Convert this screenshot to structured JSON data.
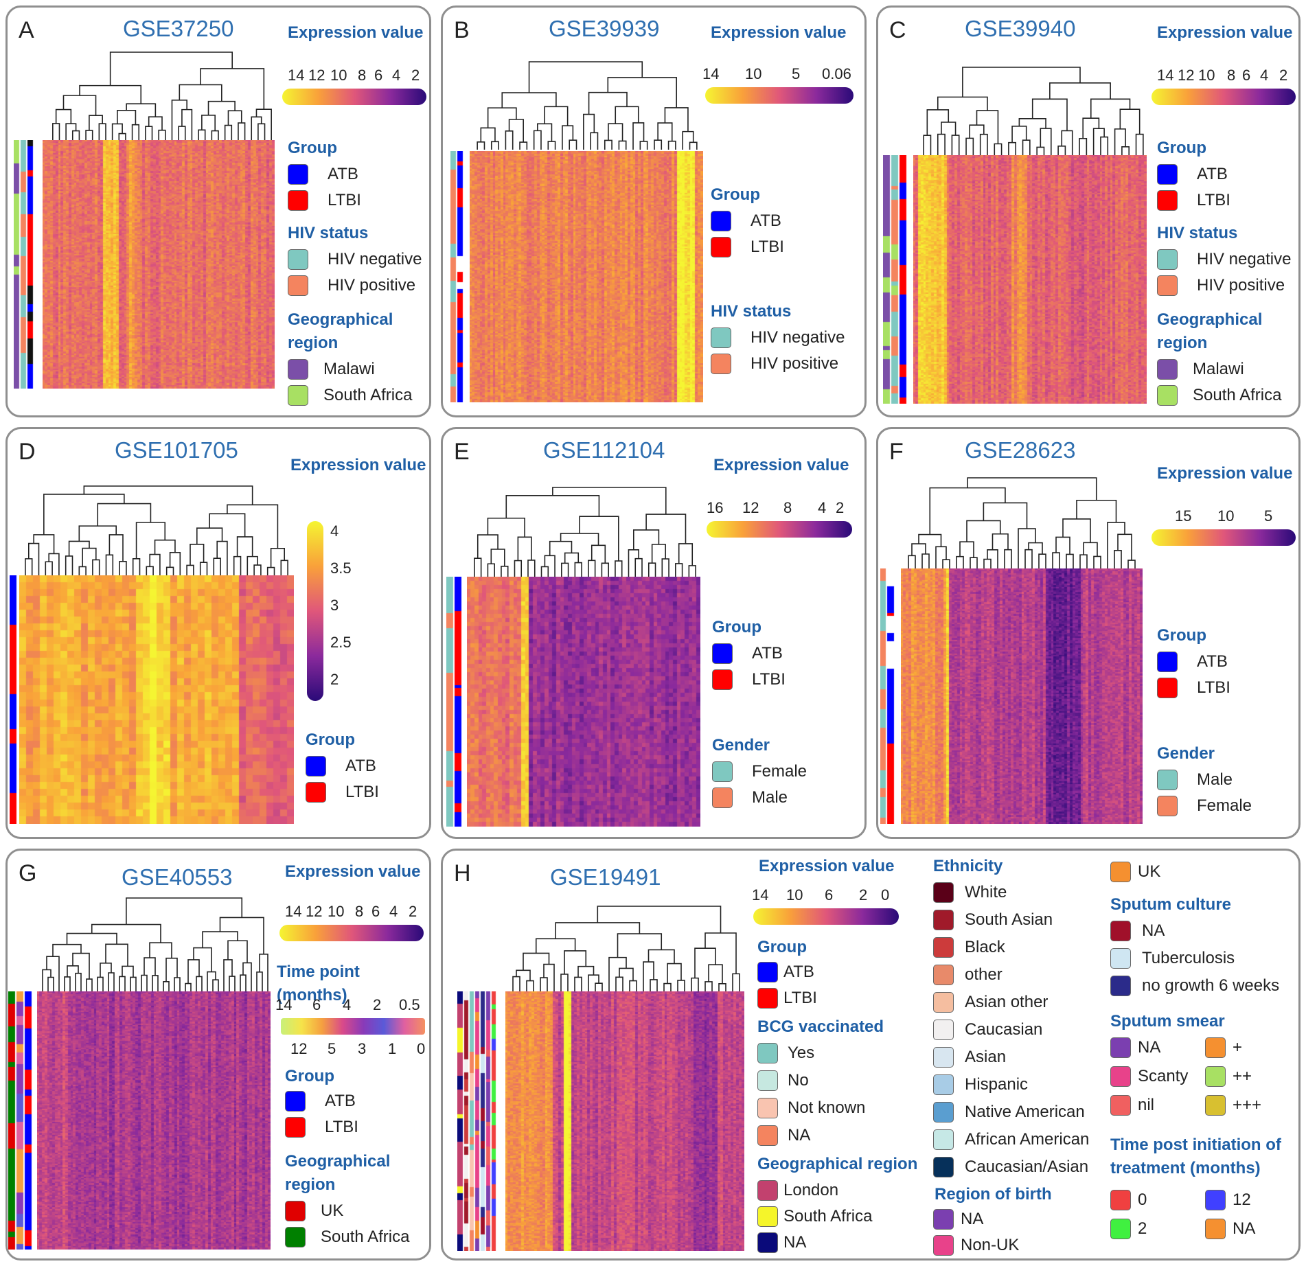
{
  "colors": {
    "ATB": "#0000ff",
    "LTBI": "#ff0000",
    "hivneg": "#7fc8c0",
    "hivpos": "#f4845f",
    "malawi": "#7b4fa8",
    "southafrica": "#a8e063",
    "uk": "#e00000",
    "sa_green": "#008000",
    "female_teal": "#7fc8c0",
    "male_orange": "#f4845f"
  },
  "expression_label": "Expression value",
  "chart_data": [
    {
      "panel": "A",
      "title": "GSE37250",
      "type": "heatmap",
      "colorbar": {
        "label": "Expression value",
        "ticks": [
          "14",
          "12",
          "10",
          "8",
          "6",
          "4",
          "2"
        ]
      },
      "legend": [
        {
          "heading": "Group",
          "items": [
            {
              "label": "ATB",
              "color": "#0000ff"
            },
            {
              "label": "LTBI",
              "color": "#ff0000"
            }
          ]
        },
        {
          "heading": "HIV status",
          "items": [
            {
              "label": "HIV negative",
              "color": "#7fc8c0"
            },
            {
              "label": "HIV positive",
              "color": "#f4845f"
            }
          ]
        },
        {
          "heading": "Geographical region",
          "items": [
            {
              "label": "Malawi",
              "color": "#7b4fa8"
            },
            {
              "label": "South Africa",
              "color": "#a8e063"
            }
          ]
        }
      ]
    },
    {
      "panel": "B",
      "title": "GSE39939",
      "type": "heatmap",
      "colorbar": {
        "label": "Expression value",
        "ticks": [
          "14",
          "10",
          "5",
          "0.06"
        ]
      },
      "legend": [
        {
          "heading": "Group",
          "items": [
            {
              "label": "ATB",
              "color": "#0000ff"
            },
            {
              "label": "LTBI",
              "color": "#ff0000"
            }
          ]
        },
        {
          "heading": "HIV status",
          "items": [
            {
              "label": "HIV negative",
              "color": "#7fc8c0"
            },
            {
              "label": "HIV positive",
              "color": "#f4845f"
            }
          ]
        }
      ]
    },
    {
      "panel": "C",
      "title": "GSE39940",
      "type": "heatmap",
      "colorbar": {
        "label": "Expression value",
        "ticks": [
          "14",
          "12",
          "10",
          "8",
          "6",
          "4",
          "2"
        ]
      },
      "legend": [
        {
          "heading": "Group",
          "items": [
            {
              "label": "ATB",
              "color": "#0000ff"
            },
            {
              "label": "LTBI",
              "color": "#ff0000"
            }
          ]
        },
        {
          "heading": "HIV status",
          "items": [
            {
              "label": "HIV negative",
              "color": "#7fc8c0"
            },
            {
              "label": "HIV positive",
              "color": "#f4845f"
            }
          ]
        },
        {
          "heading": "Geographical region",
          "items": [
            {
              "label": "Malawi",
              "color": "#7b4fa8"
            },
            {
              "label": "South Africa",
              "color": "#a8e063"
            }
          ]
        }
      ]
    },
    {
      "panel": "D",
      "title": "GSE101705",
      "type": "heatmap",
      "colorbar": {
        "label": "Expression value",
        "ticks": [
          "4",
          "3.5",
          "3",
          "2.5",
          "2"
        ]
      },
      "legend": [
        {
          "heading": "Group",
          "items": [
            {
              "label": "ATB",
              "color": "#0000ff"
            },
            {
              "label": "LTBI",
              "color": "#ff0000"
            }
          ]
        }
      ]
    },
    {
      "panel": "E",
      "title": "GSE112104",
      "type": "heatmap",
      "colorbar": {
        "label": "Expression value",
        "ticks": [
          "16",
          "12",
          "8",
          "4",
          "2"
        ]
      },
      "legend": [
        {
          "heading": "Group",
          "items": [
            {
              "label": "ATB",
              "color": "#0000ff"
            },
            {
              "label": "LTBI",
              "color": "#ff0000"
            }
          ]
        },
        {
          "heading": "Gender",
          "items": [
            {
              "label": "Female",
              "color": "#7fc8c0"
            },
            {
              "label": "Male",
              "color": "#f4845f"
            }
          ]
        }
      ]
    },
    {
      "panel": "F",
      "title": "GSE28623",
      "type": "heatmap",
      "colorbar": {
        "label": "Expression value",
        "ticks": [
          "15",
          "10",
          "5"
        ]
      },
      "legend": [
        {
          "heading": "Group",
          "items": [
            {
              "label": "ATB",
              "color": "#0000ff"
            },
            {
              "label": "LTBI",
              "color": "#ff0000"
            }
          ]
        },
        {
          "heading": "Gender",
          "items": [
            {
              "label": "Male",
              "color": "#7fc8c0"
            },
            {
              "label": "Female",
              "color": "#f4845f"
            }
          ]
        }
      ]
    },
    {
      "panel": "G",
      "title": "GSE40553",
      "type": "heatmap",
      "colorbar": {
        "label": "Expression value",
        "ticks": [
          "14",
          "12",
          "10",
          "8",
          "6",
          "4",
          "2"
        ]
      },
      "timebar": {
        "label": "Time point (months)",
        "ticks_top": [
          "14",
          "6",
          "4",
          "2",
          "0.5"
        ],
        "ticks_bottom": [
          "12",
          "5",
          "3",
          "1",
          "0"
        ]
      },
      "legend": [
        {
          "heading": "Group",
          "items": [
            {
              "label": "ATB",
              "color": "#0000ff"
            },
            {
              "label": "LTBI",
              "color": "#ff0000"
            }
          ]
        },
        {
          "heading": "Geographical region",
          "items": [
            {
              "label": "UK",
              "color": "#e00000"
            },
            {
              "label": "South Africa",
              "color": "#008000"
            }
          ]
        }
      ]
    },
    {
      "panel": "H",
      "title": "GSE19491",
      "type": "heatmap",
      "colorbar": {
        "label": "Expression value",
        "ticks": [
          "14",
          "10",
          "6",
          "2",
          "0"
        ]
      },
      "legend": [
        {
          "heading": "Group",
          "items": [
            {
              "label": "ATB",
              "color": "#0000ff"
            },
            {
              "label": "LTBI",
              "color": "#ff0000"
            }
          ]
        },
        {
          "heading": "BCG vaccinated",
          "items": [
            {
              "label": "Yes",
              "color": "#7fc8c0"
            },
            {
              "label": "No",
              "color": "#c6e8e0"
            },
            {
              "label": "Not known",
              "color": "#f9c4b0"
            },
            {
              "label": "NA",
              "color": "#f4845f"
            }
          ]
        },
        {
          "heading": "Geographical region",
          "items": [
            {
              "label": "London",
              "color": "#c2416e"
            },
            {
              "label": "South Africa",
              "color": "#f5f52a"
            },
            {
              "label": "NA",
              "color": "#0a0a7a"
            }
          ]
        },
        {
          "heading": "Ethnicity",
          "items": [
            {
              "label": "White",
              "color": "#5a0018"
            },
            {
              "label": "South Asian",
              "color": "#a01a2a"
            },
            {
              "label": "Black",
              "color": "#cc3b3b"
            },
            {
              "label": "other",
              "color": "#e88a6a"
            },
            {
              "label": "Asian other",
              "color": "#f5bea0"
            },
            {
              "label": "Caucasian",
              "color": "#f2f0f0"
            },
            {
              "label": "Asian",
              "color": "#d8e6f0"
            },
            {
              "label": "Hispanic",
              "color": "#a8cce6"
            },
            {
              "label": "Native American",
              "color": "#5a9ed0"
            },
            {
              "label": "African American",
              "color": "#c6e8e6"
            },
            {
              "label": "Caucasian/Asian",
              "color": "#06305a"
            }
          ]
        },
        {
          "heading": "Region of birth",
          "items": [
            {
              "label": "NA",
              "color": "#7b3fb0"
            },
            {
              "label": "Non-UK",
              "color": "#e8428a"
            },
            {
              "label": "UK",
              "color": "#f59030"
            }
          ]
        },
        {
          "heading": "Sputum culture",
          "items": [
            {
              "label": "NA",
              "color": "#a0102a"
            },
            {
              "label": "Tuberculosis",
              "color": "#cfe6f2"
            },
            {
              "label": "no growth 6 weeks",
              "color": "#2b2b8a"
            }
          ]
        },
        {
          "heading": "Sputum smear",
          "items": [
            {
              "label": "NA",
              "color": "#7b3fb0"
            },
            {
              "label": "Scanty",
              "color": "#e8428a"
            },
            {
              "label": "nil",
              "color": "#f06060"
            },
            {
              "label": "+",
              "color": "#f59030"
            },
            {
              "label": "++",
              "color": "#a8e063"
            },
            {
              "label": "+++",
              "color": "#d8c030"
            }
          ]
        },
        {
          "heading": "Time post initiation of treatment (months)",
          "items": [
            {
              "label": "0",
              "color": "#f04040"
            },
            {
              "label": "2",
              "color": "#40f040"
            },
            {
              "label": "12",
              "color": "#4040ff"
            },
            {
              "label": "NA",
              "color": "#f59030"
            }
          ]
        }
      ]
    }
  ]
}
